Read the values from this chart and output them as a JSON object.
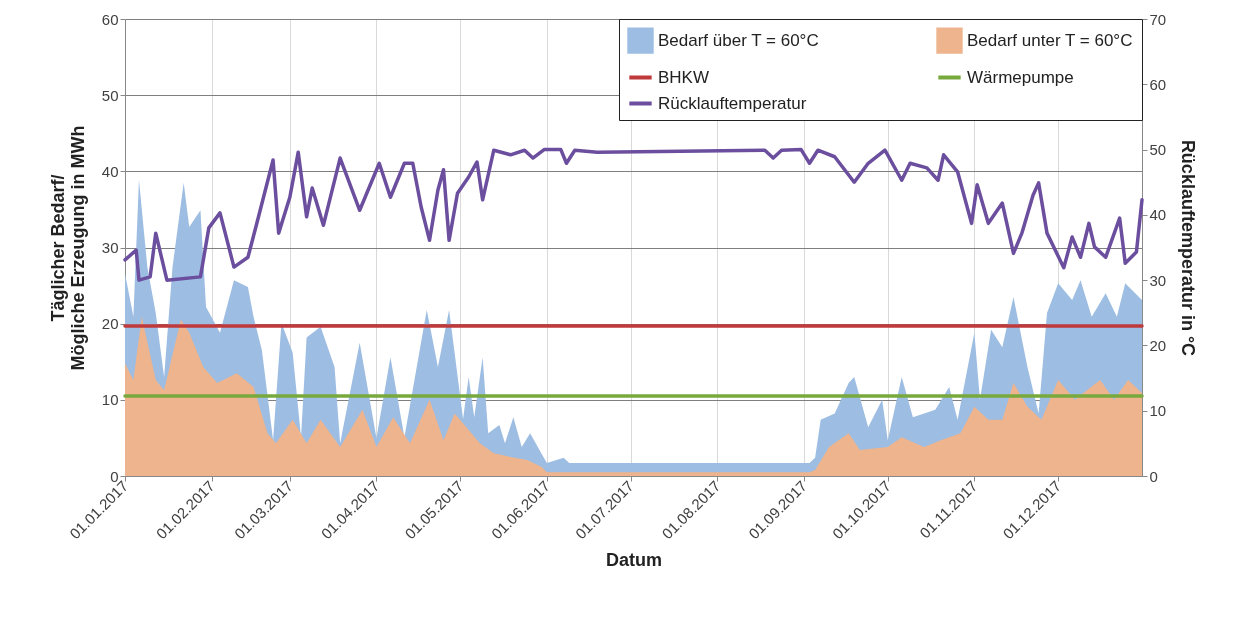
{
  "chart_data": {
    "type": "area",
    "xlabel": "Datum",
    "ylabel": "Täglicher Bedarf/ Mögliche Erzeugung in MWh",
    "y2label": "Rücklauftemperatur in °C",
    "xlim": [
      "2017-01-01",
      "2017-12-31"
    ],
    "xticks": [
      {
        "value": "2017-01-01",
        "label": "01.01.2017"
      },
      {
        "value": "2017-02-01",
        "label": "01.02.2017"
      },
      {
        "value": "2017-03-01",
        "label": "01.03.2017"
      },
      {
        "value": "2017-04-01",
        "label": "01.04.2017"
      },
      {
        "value": "2017-05-01",
        "label": "01.05.2017"
      },
      {
        "value": "2017-06-01",
        "label": "01.06.2017"
      },
      {
        "value": "2017-07-01",
        "label": "01.07.2017"
      },
      {
        "value": "2017-08-01",
        "label": "01.08.2017"
      },
      {
        "value": "2017-09-01",
        "label": "01.09.2017"
      },
      {
        "value": "2017-10-01",
        "label": "01.10.2017"
      },
      {
        "value": "2017-11-01",
        "label": "01.11.2017"
      },
      {
        "value": "2017-12-01",
        "label": "01.12.2017"
      }
    ],
    "ylim": [
      0,
      60
    ],
    "yticks": [
      0,
      10,
      20,
      30,
      40,
      50,
      60
    ],
    "y2lim": [
      0,
      70
    ],
    "y2ticks": [
      0,
      10,
      20,
      30,
      40,
      50,
      60,
      70
    ],
    "grid": true,
    "legend": "top right",
    "series": [
      {
        "name": "Bedarf über T = 60°C",
        "type": "area",
        "color": "#9dbde2",
        "x": [
          "2017-01-01",
          "2017-01-04",
          "2017-01-06",
          "2017-01-09",
          "2017-01-12",
          "2017-01-15",
          "2017-01-18",
          "2017-01-22",
          "2017-01-24",
          "2017-01-28",
          "2017-01-30",
          "2017-02-04",
          "2017-02-09",
          "2017-02-14",
          "2017-02-16",
          "2017-02-19",
          "2017-02-23",
          "2017-02-26",
          "2017-03-02",
          "2017-03-05",
          "2017-03-07",
          "2017-03-12",
          "2017-03-17",
          "2017-03-19",
          "2017-03-26",
          "2017-04-01",
          "2017-04-06",
          "2017-04-11",
          "2017-04-19",
          "2017-04-23",
          "2017-04-27",
          "2017-05-02",
          "2017-05-04",
          "2017-05-06",
          "2017-05-09",
          "2017-05-11",
          "2017-05-15",
          "2017-05-17",
          "2017-05-20",
          "2017-05-23",
          "2017-05-26",
          "2017-05-30",
          "2017-06-01",
          "2017-06-07",
          "2017-06-09",
          "2017-09-03",
          "2017-09-05",
          "2017-09-07",
          "2017-09-12",
          "2017-09-17",
          "2017-09-19",
          "2017-09-24",
          "2017-09-29",
          "2017-10-01",
          "2017-10-06",
          "2017-10-10",
          "2017-10-18",
          "2017-10-23",
          "2017-10-26",
          "2017-11-01",
          "2017-11-03",
          "2017-11-07",
          "2017-11-11",
          "2017-11-15",
          "2017-11-20",
          "2017-11-24",
          "2017-11-27",
          "2017-12-01",
          "2017-12-06",
          "2017-12-09",
          "2017-12-13",
          "2017-12-18",
          "2017-12-22",
          "2017-12-25",
          "2017-12-31"
        ],
        "values": [
          26.6,
          20.9,
          38.9,
          27.4,
          21.4,
          13.0,
          27.4,
          38.5,
          32.7,
          34.9,
          22.2,
          18.8,
          25.7,
          24.8,
          20.9,
          16.5,
          4.7,
          20.1,
          16.2,
          5.1,
          18.2,
          19.6,
          14.3,
          4.3,
          17.5,
          5.0,
          15.6,
          5.1,
          21.8,
          14.3,
          21.8,
          7.5,
          13.0,
          7.7,
          15.6,
          5.6,
          6.7,
          4.3,
          7.7,
          3.8,
          5.6,
          3.0,
          1.7,
          2.4,
          1.7,
          1.7,
          2.4,
          7.4,
          8.2,
          12.2,
          13.0,
          6.4,
          10.0,
          4.7,
          13.0,
          7.7,
          8.7,
          11.7,
          7.4,
          18.8,
          10.0,
          19.2,
          16.9,
          23.5,
          14.3,
          8.2,
          21.4,
          25.3,
          23.1,
          25.7,
          20.9,
          24.0,
          20.9,
          25.3,
          23.1
        ]
      },
      {
        "name": "Bedarf unter T = 60°C",
        "type": "area",
        "color": "#eeb48d",
        "x": [
          "2017-01-01",
          "2017-01-04",
          "2017-01-07",
          "2017-01-12",
          "2017-01-15",
          "2017-01-21",
          "2017-01-24",
          "2017-01-29",
          "2017-02-03",
          "2017-02-10",
          "2017-02-16",
          "2017-02-21",
          "2017-02-24",
          "2017-03-02",
          "2017-03-07",
          "2017-03-12",
          "2017-03-19",
          "2017-03-27",
          "2017-04-01",
          "2017-04-07",
          "2017-04-13",
          "2017-04-20",
          "2017-04-25",
          "2017-04-29",
          "2017-05-05",
          "2017-05-08",
          "2017-05-13",
          "2017-05-19",
          "2017-05-25",
          "2017-05-30",
          "2017-06-01",
          "2017-09-03",
          "2017-09-05",
          "2017-09-10",
          "2017-09-17",
          "2017-09-21",
          "2017-10-01",
          "2017-10-06",
          "2017-10-14",
          "2017-10-20",
          "2017-10-27",
          "2017-11-01",
          "2017-11-06",
          "2017-11-11",
          "2017-11-15",
          "2017-11-20",
          "2017-11-25",
          "2017-12-01",
          "2017-12-07",
          "2017-12-10",
          "2017-12-16",
          "2017-12-21",
          "2017-12-26",
          "2017-12-31"
        ],
        "values": [
          14.8,
          12.6,
          20.9,
          12.6,
          11.3,
          20.5,
          18.8,
          14.3,
          12.2,
          13.5,
          11.7,
          5.6,
          4.3,
          7.4,
          4.3,
          7.4,
          3.8,
          8.7,
          3.8,
          7.7,
          4.3,
          10.0,
          4.7,
          8.2,
          5.6,
          4.3,
          3.0,
          2.5,
          2.1,
          1.2,
          0.5,
          0.5,
          0.8,
          3.8,
          5.6,
          3.4,
          3.8,
          5.1,
          3.8,
          4.7,
          5.6,
          9.1,
          7.4,
          7.4,
          12.2,
          9.1,
          7.4,
          12.6,
          10.0,
          10.9,
          12.6,
          10.0,
          12.6,
          10.9
        ]
      },
      {
        "name": "BHKW",
        "type": "line",
        "color": "#c0393b",
        "x": [
          "2017-01-01",
          "2017-12-31"
        ],
        "values": [
          19.7,
          19.7
        ]
      },
      {
        "name": "Wärmepumpe",
        "type": "line",
        "color": "#78a93c",
        "x": [
          "2017-01-01",
          "2017-12-31"
        ],
        "values": [
          10.5,
          10.5
        ]
      },
      {
        "name": "Rücklauftemperatur",
        "type": "line",
        "axis": "y2",
        "color": "#6b4f9e",
        "x": [
          "2017-01-01",
          "2017-01-05",
          "2017-01-06",
          "2017-01-10",
          "2017-01-12",
          "2017-01-16",
          "2017-01-28",
          "2017-01-31",
          "2017-02-04",
          "2017-02-09",
          "2017-02-14",
          "2017-02-17",
          "2017-02-23",
          "2017-02-25",
          "2017-03-01",
          "2017-03-04",
          "2017-03-07",
          "2017-03-09",
          "2017-03-13",
          "2017-03-19",
          "2017-03-26",
          "2017-04-02",
          "2017-04-06",
          "2017-04-11",
          "2017-04-14",
          "2017-04-17",
          "2017-04-20",
          "2017-04-23",
          "2017-04-25",
          "2017-04-27",
          "2017-04-30",
          "2017-05-04",
          "2017-05-07",
          "2017-05-09",
          "2017-05-13",
          "2017-05-19",
          "2017-05-24",
          "2017-05-27",
          "2017-05-31",
          "2017-06-06",
          "2017-06-08",
          "2017-06-11",
          "2017-06-19",
          "2017-08-18",
          "2017-08-21",
          "2017-08-24",
          "2017-08-31",
          "2017-09-03",
          "2017-09-06",
          "2017-09-12",
          "2017-09-19",
          "2017-09-24",
          "2017-09-30",
          "2017-10-06",
          "2017-10-09",
          "2017-10-15",
          "2017-10-19",
          "2017-10-21",
          "2017-10-26",
          "2017-10-31",
          "2017-11-02",
          "2017-11-06",
          "2017-11-11",
          "2017-11-15",
          "2017-11-18",
          "2017-11-22",
          "2017-11-24",
          "2017-11-27",
          "2017-12-03",
          "2017-12-06",
          "2017-12-09",
          "2017-12-12",
          "2017-12-14",
          "2017-12-18",
          "2017-12-23",
          "2017-12-25",
          "2017-12-29",
          "2017-12-31"
        ],
        "values": [
          33.1,
          34.6,
          30.0,
          30.5,
          37.2,
          30.0,
          30.5,
          38.0,
          40.3,
          32.0,
          33.5,
          38.4,
          48.4,
          37.2,
          42.7,
          49.6,
          39.7,
          44.1,
          38.4,
          48.7,
          40.7,
          47.9,
          42.7,
          47.9,
          47.9,
          41.2,
          36.1,
          43.8,
          46.9,
          36.1,
          43.3,
          45.8,
          48.1,
          42.3,
          49.9,
          49.2,
          49.9,
          48.7,
          50.0,
          50.0,
          47.9,
          49.9,
          49.6,
          49.9,
          48.7,
          49.9,
          50.0,
          47.9,
          49.9,
          48.9,
          45.0,
          47.9,
          49.9,
          45.3,
          47.9,
          47.2,
          45.3,
          49.2,
          46.6,
          38.7,
          44.6,
          38.7,
          41.8,
          34.1,
          37.2,
          43.0,
          44.9,
          37.2,
          31.9,
          36.6,
          33.5,
          38.7,
          35.1,
          33.5,
          39.5,
          32.6,
          34.3,
          42.3
        ]
      }
    ]
  }
}
